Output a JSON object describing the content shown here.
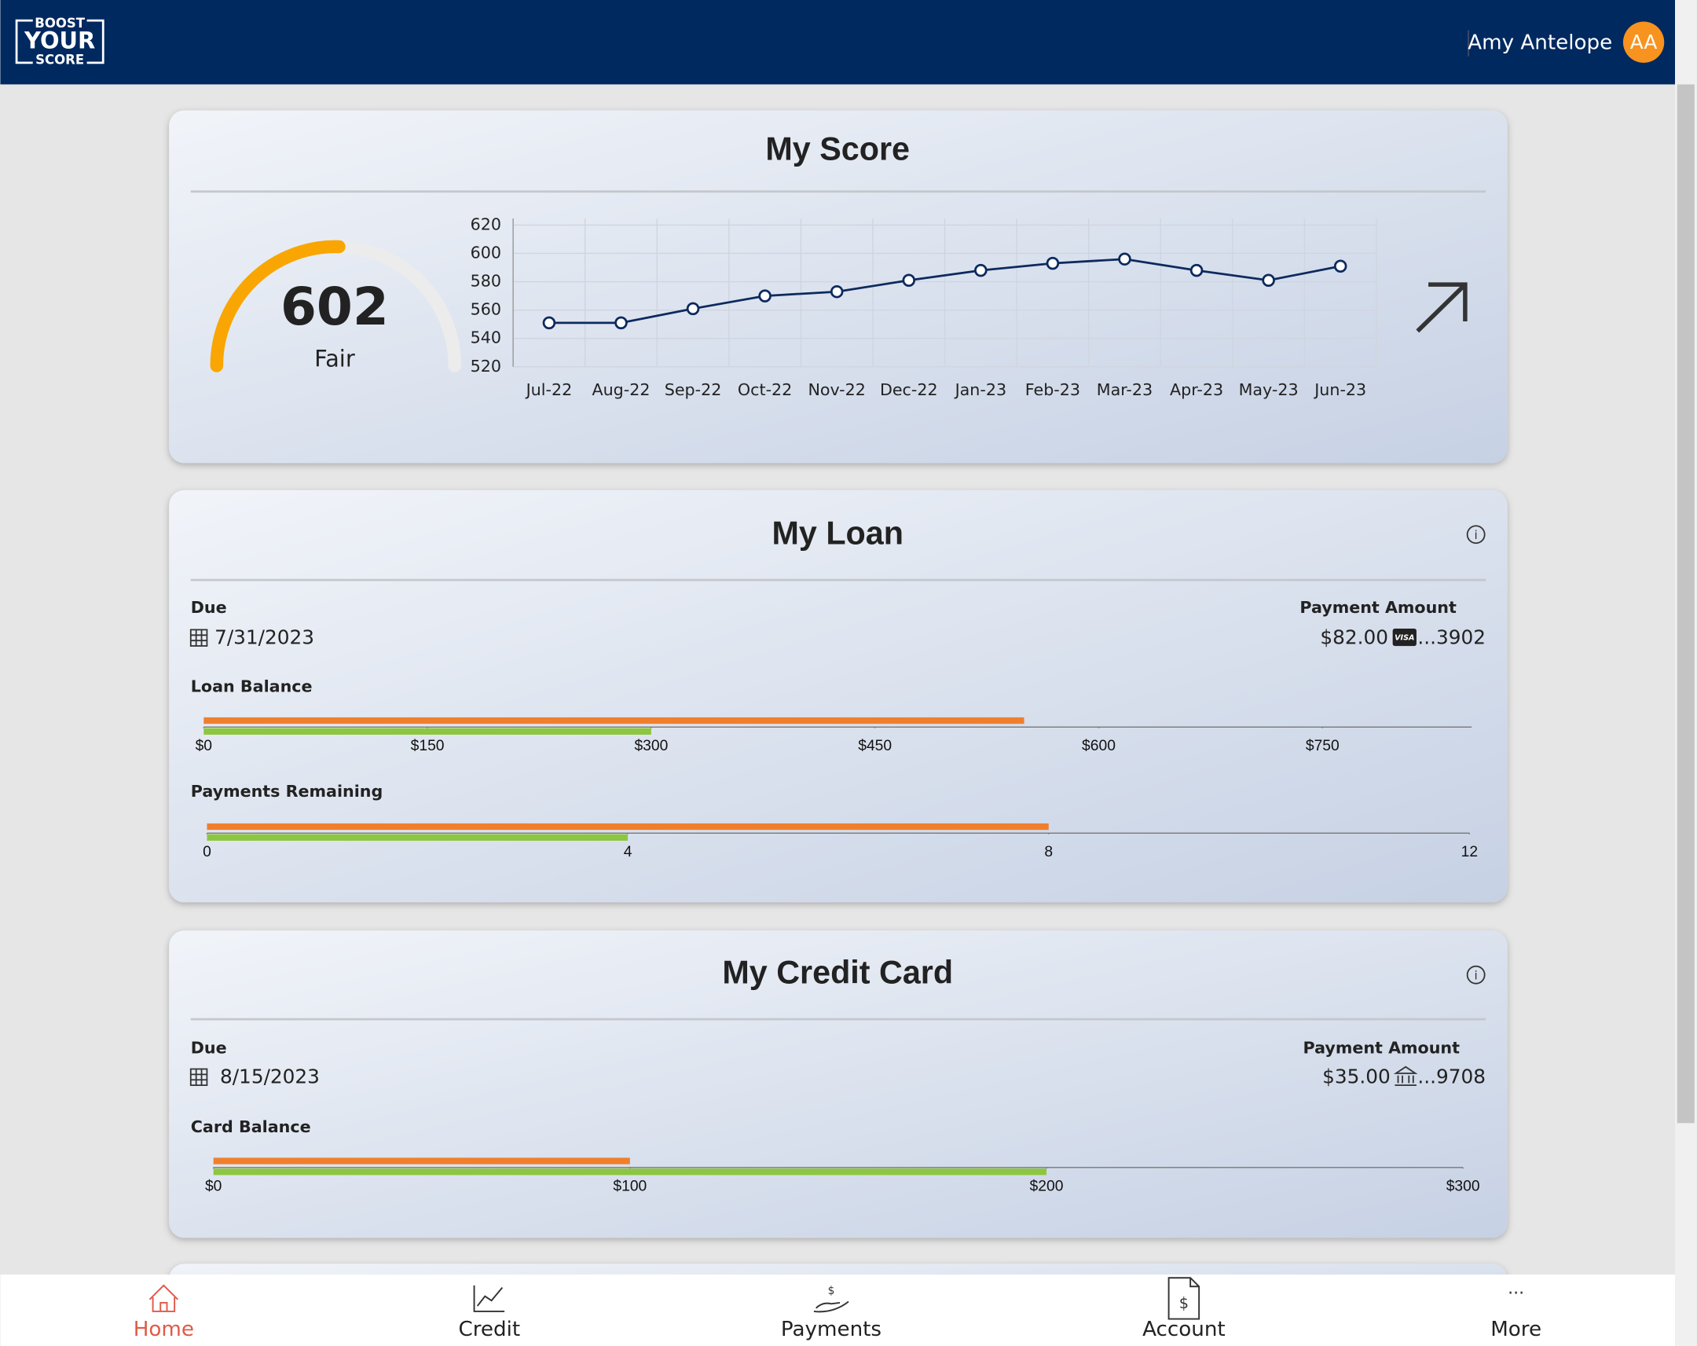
{
  "header": {
    "logo": [
      "BOOST",
      "YOUR",
      "SCORE"
    ],
    "user_name": "Amy Antelope",
    "initials": "AA"
  },
  "score_card": {
    "title": "My Score",
    "score": "602",
    "rating": "Fair",
    "chart_data": {
      "type": "line",
      "categories": [
        "Jul-22",
        "Aug-22",
        "Sep-22",
        "Oct-22",
        "Nov-22",
        "Dec-22",
        "Jan-23",
        "Feb-23",
        "Mar-23",
        "Apr-23",
        "May-23",
        "Jun-23"
      ],
      "values": [
        551,
        551,
        561,
        570,
        573,
        581,
        588,
        593,
        596,
        588,
        581,
        591
      ],
      "color": "#0d2a5e",
      "ylim": [
        520,
        620
      ],
      "yticks": [
        520,
        540,
        560,
        580,
        600,
        620
      ],
      "grid": true
    }
  },
  "loan_card": {
    "title": "My Loan",
    "due_label": "Due",
    "due_date": "7/31/2023",
    "payment_label": "Payment Amount",
    "payment_amount": "$82.00",
    "card_brand": "VISA",
    "account": "...3902",
    "balance": {
      "type": "bullet",
      "title": "Loan Balance",
      "xlim": [
        0,
        850
      ],
      "xticks": [
        {
          "value": 0,
          "label": "$0"
        },
        {
          "value": 150,
          "label": "$150"
        },
        {
          "value": 300,
          "label": "$300"
        },
        {
          "value": 450,
          "label": "$450"
        },
        {
          "value": 600,
          "label": "$600"
        },
        {
          "value": 750,
          "label": "$750"
        }
      ],
      "series": [
        {
          "color": "#f07f2d",
          "values": [
            550
          ]
        },
        {
          "color": "#8dc63f",
          "values": [
            300
          ]
        }
      ]
    },
    "payments": {
      "type": "bullet",
      "title": "Payments Remaining",
      "xlim": [
        0,
        12
      ],
      "xticks": [
        0,
        4,
        8,
        12
      ],
      "series": [
        {
          "color": "#f07f2d",
          "values": [
            8
          ]
        },
        {
          "color": "#8dc63f",
          "values": [
            4
          ]
        }
      ]
    }
  },
  "credit_card": {
    "title": "My Credit Card",
    "due_label": "Due",
    "due_date": "8/15/2023",
    "payment_label": "Payment Amount",
    "payment_amount": "$35.00",
    "account": "...9708",
    "balance": {
      "type": "bullet",
      "title": "Card Balance",
      "xlim": [
        0,
        300
      ],
      "xticks": [
        {
          "value": 0,
          "label": "$0"
        },
        {
          "value": 100,
          "label": "$100"
        },
        {
          "value": 200,
          "label": "$200"
        },
        {
          "value": 300,
          "label": "$300"
        }
      ],
      "series": [
        {
          "color": "#f07f2d",
          "values": [
            100
          ]
        },
        {
          "color": "#8dc63f",
          "values": [
            200
          ]
        }
      ]
    }
  },
  "nav": [
    "Home",
    "Credit",
    "Payments",
    "Account",
    "More"
  ]
}
